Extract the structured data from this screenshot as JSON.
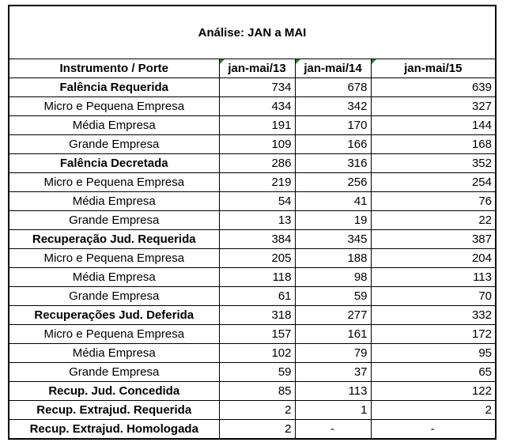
{
  "title": "Análise: JAN a MAI",
  "header": [
    "Instrumento / Porte",
    "jan-mai/13",
    "jan-mai/14",
    "jan-mai/15"
  ],
  "rows": [
    {
      "label": "Falência Requerida",
      "bold": true,
      "values": [
        "734",
        "678",
        "639"
      ]
    },
    {
      "label": "Micro e Pequena Empresa",
      "bold": false,
      "values": [
        "434",
        "342",
        "327"
      ]
    },
    {
      "label": "Média Empresa",
      "bold": false,
      "values": [
        "191",
        "170",
        "144"
      ]
    },
    {
      "label": "Grande Empresa",
      "bold": false,
      "values": [
        "109",
        "166",
        "168"
      ]
    },
    {
      "label": "Falência Decretada",
      "bold": true,
      "values": [
        "286",
        "316",
        "352"
      ]
    },
    {
      "label": "Micro e Pequena Empresa",
      "bold": false,
      "values": [
        "219",
        "256",
        "254"
      ]
    },
    {
      "label": "Média Empresa",
      "bold": false,
      "values": [
        "54",
        "41",
        "76"
      ]
    },
    {
      "label": "Grande Empresa",
      "bold": false,
      "values": [
        "13",
        "19",
        "22"
      ]
    },
    {
      "label": "Recuperação Jud. Requerida",
      "bold": true,
      "values": [
        "384",
        "345",
        "387"
      ]
    },
    {
      "label": "Micro e Pequena Empresa",
      "bold": false,
      "values": [
        "205",
        "188",
        "204"
      ]
    },
    {
      "label": "Média Empresa",
      "bold": false,
      "values": [
        "118",
        "98",
        "113"
      ]
    },
    {
      "label": "Grande Empresa",
      "bold": false,
      "values": [
        "61",
        "59",
        "70"
      ]
    },
    {
      "label": "Recuperações Jud. Deferida",
      "bold": true,
      "values": [
        "318",
        "277",
        "332"
      ]
    },
    {
      "label": "Micro e Pequena Empresa",
      "bold": false,
      "values": [
        "157",
        "161",
        "172"
      ]
    },
    {
      "label": "Média Empresa",
      "bold": false,
      "values": [
        "102",
        "79",
        "95"
      ]
    },
    {
      "label": "Grande Empresa",
      "bold": false,
      "values": [
        "59",
        "37",
        "65"
      ]
    },
    {
      "label": "Recup. Jud. Concedida",
      "bold": true,
      "values": [
        "85",
        "113",
        "122"
      ]
    },
    {
      "label": "Recup. Extrajud. Requerida",
      "bold": true,
      "values": [
        "2",
        "1",
        "2"
      ]
    },
    {
      "label": "Recup. Extrajud. Homologada",
      "bold": true,
      "values": [
        "2",
        "-",
        "-"
      ]
    }
  ]
}
